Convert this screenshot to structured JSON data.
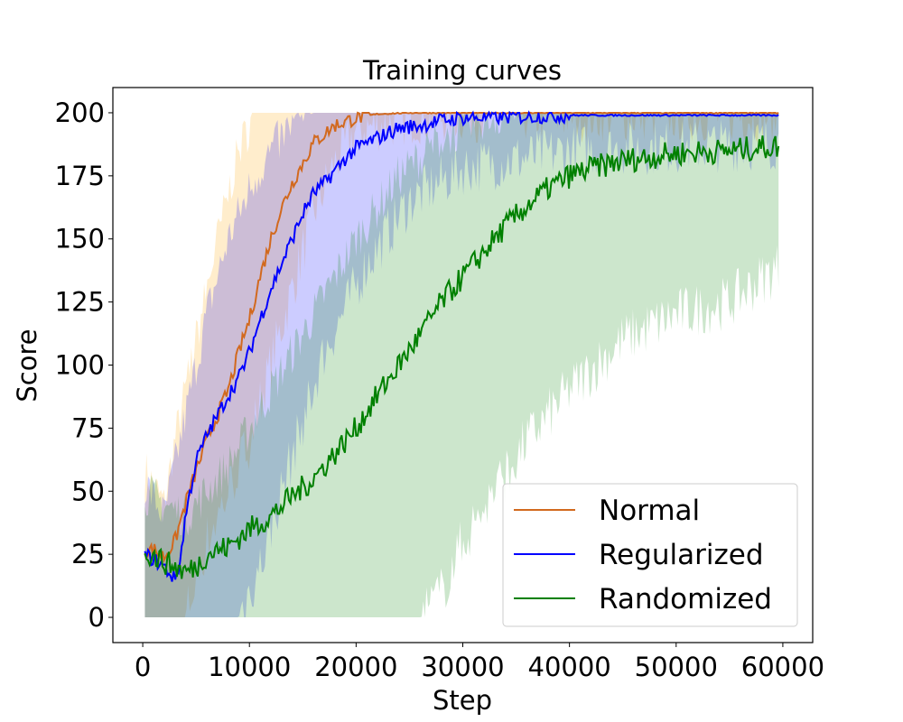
{
  "chart_data": {
    "type": "line",
    "title": "Training curves",
    "xlabel": "Step",
    "ylabel": "Score",
    "xlim": [
      -2800,
      62800
    ],
    "ylim": [
      -10,
      210
    ],
    "xticks": [
      0,
      10000,
      20000,
      30000,
      40000,
      50000,
      60000
    ],
    "yticks": [
      0,
      25,
      50,
      75,
      100,
      125,
      150,
      175,
      200
    ],
    "grid": false,
    "legend_position": "lower-right",
    "series": [
      {
        "name": "Normal",
        "color": "#d2691e",
        "band_color": "#ffa500",
        "mean": [
          [
            0,
            26
          ],
          [
            1000,
            27
          ],
          [
            2000,
            24
          ],
          [
            3000,
            30
          ],
          [
            4000,
            45
          ],
          [
            5000,
            58
          ],
          [
            6000,
            70
          ],
          [
            7000,
            80
          ],
          [
            8000,
            90
          ],
          [
            9000,
            105
          ],
          [
            10000,
            118
          ],
          [
            11000,
            135
          ],
          [
            12000,
            150
          ],
          [
            13000,
            162
          ],
          [
            14000,
            172
          ],
          [
            15000,
            180
          ],
          [
            16000,
            188
          ],
          [
            18000,
            195
          ],
          [
            20000,
            198
          ],
          [
            22000,
            199.5
          ],
          [
            25000,
            200
          ],
          [
            60000,
            200
          ]
        ],
        "upper": [
          [
            0,
            60
          ],
          [
            2000,
            45
          ],
          [
            3000,
            70
          ],
          [
            5000,
            110
          ],
          [
            7000,
            150
          ],
          [
            9000,
            185
          ],
          [
            10500,
            200
          ],
          [
            60000,
            200
          ]
        ],
        "lower": [
          [
            0,
            0
          ],
          [
            4000,
            0
          ],
          [
            6000,
            30
          ],
          [
            8000,
            50
          ],
          [
            10000,
            70
          ],
          [
            12000,
            100
          ],
          [
            14000,
            130
          ],
          [
            16000,
            160
          ],
          [
            18000,
            180
          ],
          [
            20000,
            193
          ],
          [
            25000,
            198
          ],
          [
            30000,
            199
          ],
          [
            60000,
            199
          ]
        ]
      },
      {
        "name": "Regularized",
        "color": "#0000ff",
        "band_color": "#0000ff",
        "mean": [
          [
            0,
            25
          ],
          [
            1000,
            23
          ],
          [
            2000,
            20
          ],
          [
            3000,
            15
          ],
          [
            3500,
            22
          ],
          [
            4000,
            40
          ],
          [
            5000,
            62
          ],
          [
            6000,
            72
          ],
          [
            7000,
            80
          ],
          [
            8000,
            88
          ],
          [
            9000,
            95
          ],
          [
            10000,
            105
          ],
          [
            11000,
            118
          ],
          [
            12000,
            130
          ],
          [
            13000,
            140
          ],
          [
            14000,
            150
          ],
          [
            15000,
            160
          ],
          [
            16000,
            168
          ],
          [
            17000,
            172
          ],
          [
            18000,
            177
          ],
          [
            19000,
            182
          ],
          [
            20000,
            186
          ],
          [
            22000,
            190
          ],
          [
            24000,
            194
          ],
          [
            26000,
            195
          ],
          [
            28000,
            197
          ],
          [
            30000,
            198
          ],
          [
            40000,
            199
          ],
          [
            60000,
            199
          ]
        ],
        "upper": [
          [
            0,
            55
          ],
          [
            2000,
            40
          ],
          [
            4000,
            80
          ],
          [
            6000,
            120
          ],
          [
            8000,
            150
          ],
          [
            10000,
            170
          ],
          [
            12000,
            185
          ],
          [
            14000,
            195
          ],
          [
            16000,
            200
          ],
          [
            60000,
            200
          ]
        ],
        "lower": [
          [
            0,
            0
          ],
          [
            9000,
            0
          ],
          [
            11000,
            20
          ],
          [
            13000,
            50
          ],
          [
            17000,
            105
          ],
          [
            21000,
            140
          ],
          [
            25000,
            165
          ],
          [
            30000,
            178
          ],
          [
            40000,
            185
          ],
          [
            60000,
            188
          ]
        ]
      },
      {
        "name": "Randomized",
        "color": "#008000",
        "band_color": "#008000",
        "mean": [
          [
            0,
            27
          ],
          [
            2000,
            22
          ],
          [
            4000,
            18
          ],
          [
            5000,
            20
          ],
          [
            6000,
            25
          ],
          [
            8000,
            28
          ],
          [
            10000,
            35
          ],
          [
            12000,
            40
          ],
          [
            14000,
            48
          ],
          [
            16000,
            55
          ],
          [
            18000,
            65
          ],
          [
            20000,
            75
          ],
          [
            22000,
            88
          ],
          [
            24000,
            100
          ],
          [
            26000,
            112
          ],
          [
            28000,
            125
          ],
          [
            30000,
            135
          ],
          [
            32000,
            145
          ],
          [
            34000,
            155
          ],
          [
            36000,
            163
          ],
          [
            38000,
            170
          ],
          [
            40000,
            175
          ],
          [
            42000,
            178
          ],
          [
            45000,
            181
          ],
          [
            50000,
            184
          ],
          [
            55000,
            185
          ],
          [
            60000,
            187
          ]
        ],
        "upper": [
          [
            0,
            50
          ],
          [
            4000,
            40
          ],
          [
            8000,
            60
          ],
          [
            12000,
            90
          ],
          [
            16000,
            120
          ],
          [
            20000,
            150
          ],
          [
            24000,
            175
          ],
          [
            28000,
            190
          ],
          [
            32000,
            198
          ],
          [
            36000,
            200
          ],
          [
            60000,
            200
          ]
        ],
        "lower": [
          [
            0,
            0
          ],
          [
            26000,
            0
          ],
          [
            28000,
            10
          ],
          [
            30000,
            30
          ],
          [
            33000,
            50
          ],
          [
            36000,
            70
          ],
          [
            40000,
            90
          ],
          [
            45000,
            110
          ],
          [
            50000,
            120
          ],
          [
            55000,
            125
          ],
          [
            60000,
            140
          ]
        ]
      }
    ]
  }
}
